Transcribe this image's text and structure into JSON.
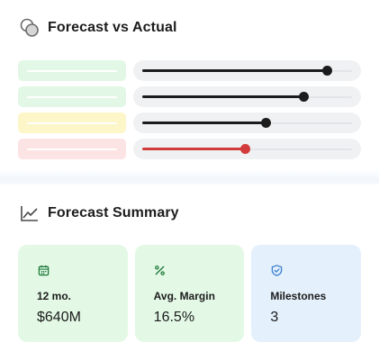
{
  "forecast_vs_actual": {
    "title": "Forecast vs Actual",
    "icon": "overlapping-circles-icon",
    "rows": [
      {
        "chip_color": "#e3f7e6",
        "fill_color": "#1c1c1c",
        "level": 0.88
      },
      {
        "chip_color": "#e3f7e6",
        "fill_color": "#1c1c1c",
        "level": 0.77
      },
      {
        "chip_color": "#fdf6c9",
        "fill_color": "#1c1c1c",
        "level": 0.59
      },
      {
        "chip_color": "#fde4e4",
        "fill_color": "#d23b3b",
        "level": 0.49
      }
    ]
  },
  "forecast_summary": {
    "title": "Forecast Summary",
    "icon": "line-chart-icon",
    "cards": [
      {
        "label": "12 mo.",
        "value": "$640M",
        "icon": "calendar-icon",
        "bg": "#e3f9e6",
        "icon_color": "#1f7a3a"
      },
      {
        "label": "Avg. Margin",
        "value": "16.5%",
        "icon": "percent-icon",
        "bg": "#e3f9e6",
        "icon_color": "#1f7a3a"
      },
      {
        "label": "Milestones",
        "value": "3",
        "icon": "shield-check-icon",
        "bg": "#e4f0fc",
        "icon_color": "#3b7fd0"
      }
    ]
  }
}
